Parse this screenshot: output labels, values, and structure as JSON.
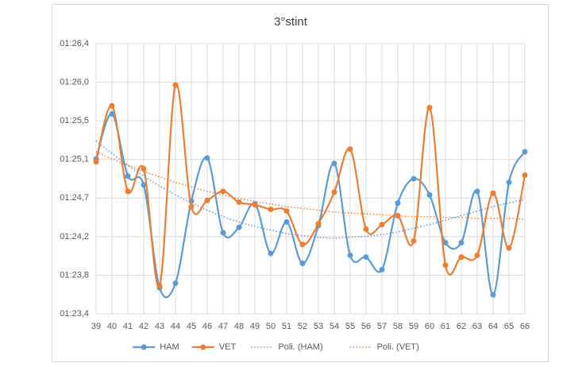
{
  "chart_data": {
    "type": "line",
    "title": "3°stint",
    "categories": [
      "39",
      "40",
      "41",
      "42",
      "43",
      "44",
      "45",
      "46",
      "47",
      "48",
      "49",
      "50",
      "51",
      "52",
      "53",
      "54",
      "55",
      "56",
      "57",
      "58",
      "59",
      "60",
      "61",
      "62",
      "63",
      "64",
      "65",
      "66"
    ],
    "ylim": [
      83.4,
      86.4
    ],
    "yticks": [
      {
        "value": 83.4,
        "label": "01:23,4"
      },
      {
        "value": 83.8286,
        "label": "01:23,8"
      },
      {
        "value": 84.2571,
        "label": "01:24,2"
      },
      {
        "value": 84.6857,
        "label": "01:24,7"
      },
      {
        "value": 85.1143,
        "label": "01:25,1"
      },
      {
        "value": 85.5429,
        "label": "01:25,5"
      },
      {
        "value": 85.9714,
        "label": "01:26,0"
      },
      {
        "value": 86.4,
        "label": "01:26,4"
      }
    ],
    "grid": true,
    "legend": "bottom",
    "series": [
      {
        "name": "HAM",
        "color": "#5b9bd5",
        "style": "solid",
        "markers": true,
        "values": [
          85.12,
          85.62,
          84.93,
          84.83,
          83.69,
          83.74,
          84.65,
          85.13,
          84.3,
          84.36,
          84.62,
          84.07,
          84.42,
          83.96,
          84.38,
          85.07,
          84.05,
          84.03,
          83.89,
          84.63,
          84.9,
          84.72,
          84.19,
          84.19,
          84.76,
          83.61,
          84.86,
          85.2
        ]
      },
      {
        "name": "VET",
        "color": "#ed7d31",
        "style": "solid",
        "markers": true,
        "values": [
          85.09,
          85.71,
          84.76,
          85.01,
          83.71,
          85.94,
          84.59,
          84.66,
          84.76,
          84.64,
          84.61,
          84.56,
          84.54,
          84.17,
          84.4,
          84.75,
          85.23,
          84.34,
          84.39,
          84.49,
          84.21,
          85.69,
          83.94,
          84.03,
          84.05,
          84.74,
          84.13,
          84.94
        ]
      },
      {
        "name": "Poli. (HAM)",
        "color": "#5b9bd5",
        "style": "dotted",
        "markers": false,
        "values": [
          85.32,
          85.18,
          85.05,
          84.93,
          84.82,
          84.72,
          84.63,
          84.55,
          84.48,
          84.42,
          84.37,
          84.33,
          84.29,
          84.27,
          84.25,
          84.24,
          84.25,
          84.26,
          84.28,
          84.31,
          84.35,
          84.39,
          84.44,
          84.49,
          84.54,
          84.59,
          84.63,
          84.67
        ]
      },
      {
        "name": "Poli. (VET)",
        "color": "#ed7d31",
        "style": "dotted",
        "markers": false,
        "values": [
          85.2,
          85.12,
          85.05,
          84.98,
          84.92,
          84.86,
          84.81,
          84.76,
          84.72,
          84.68,
          84.65,
          84.62,
          84.59,
          84.57,
          84.55,
          84.53,
          84.52,
          84.51,
          84.5,
          84.49,
          84.48,
          84.48,
          84.47,
          84.47,
          84.46,
          84.46,
          84.46,
          84.45
        ]
      }
    ]
  }
}
